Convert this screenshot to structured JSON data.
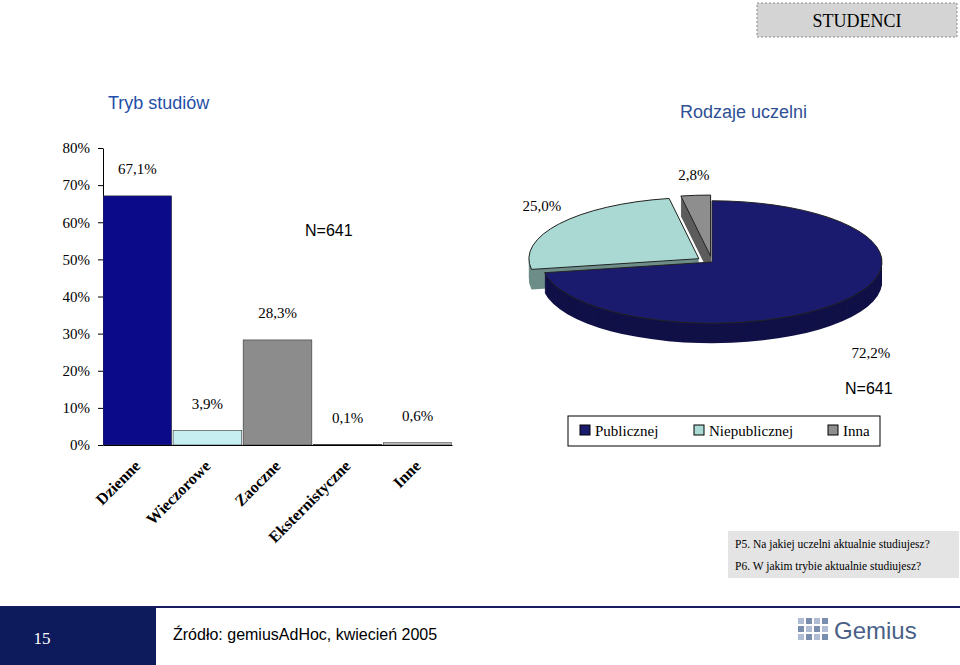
{
  "header": "STUDENCI",
  "notes": [
    "P5. Na jakiej uczelni aktualnie studiujesz?",
    "P6. W jakim trybie aktualnie studiujesz?"
  ],
  "source": "Źródło: gemiusAdHoc, kwiecień 2005",
  "page_number": "15",
  "logo": "Gemius",
  "chart_data": [
    {
      "type": "bar",
      "title": "Tryb studiów",
      "annotation": "N=641",
      "categories": [
        "Dzienne",
        "Wieczorowe",
        "Zaoczne",
        "Eksternistyczne",
        "Inne"
      ],
      "values": [
        67.1,
        3.9,
        28.3,
        0.1,
        0.6
      ],
      "value_labels": [
        "67,1%",
        "3,9%",
        "28,3%",
        "0,1%",
        "0,6%"
      ],
      "colors": [
        "#0b0b8a",
        "#c6eef0",
        "#8c8c8c",
        "#e0e0e0",
        "#c4c4c4"
      ],
      "ylim": [
        0,
        80
      ],
      "yticks": [
        {
          "value": 0,
          "label": "0%"
        },
        {
          "value": 10,
          "label": "10%"
        },
        {
          "value": 20,
          "label": "20%"
        },
        {
          "value": 30,
          "label": "30%"
        },
        {
          "value": 40,
          "label": "40%"
        },
        {
          "value": 50,
          "label": "50%"
        },
        {
          "value": 60,
          "label": "60%"
        },
        {
          "value": 70,
          "label": "70%"
        },
        {
          "value": 80,
          "label": "80%"
        }
      ],
      "grid": false,
      "data_labels": true
    },
    {
      "type": "pie",
      "title": "Rodzaje uczelni",
      "annotation": "N=641",
      "categories": [
        "Publicznej",
        "Niepublicznej",
        "Inna"
      ],
      "values": [
        72.2,
        25.0,
        2.8
      ],
      "value_labels": [
        "72,2%",
        "25,0%",
        "2,8%"
      ],
      "colors": [
        "#1a1a6e",
        "#a9d9d2",
        "#8e8e8e"
      ],
      "legend": "bottom",
      "data_labels": true
    }
  ]
}
